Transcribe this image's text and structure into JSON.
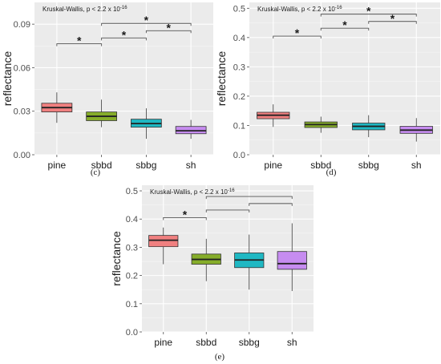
{
  "chart_data": [
    {
      "type": "box",
      "panel_label": "(c)",
      "annotation": "Kruskal-Wallis, p < 2.2 x 10",
      "annotation_exp": "-16",
      "ylabel": "reflectance",
      "ylim": [
        0,
        0.105
      ],
      "yticks": [
        0,
        0.03,
        0.06,
        0.09
      ],
      "ytick_labels": [
        "0.00",
        "0.03",
        "0.06",
        "0.09"
      ],
      "categories": [
        "pine",
        "sbbd",
        "sbbg",
        "sh"
      ],
      "colors": [
        "#f08080",
        "#86ad2a",
        "#1fb8c3",
        "#c68cf0"
      ],
      "boxes": [
        {
          "min": 0.022,
          "q1": 0.0295,
          "median": 0.0325,
          "q3": 0.0355,
          "max": 0.043
        },
        {
          "min": 0.019,
          "q1": 0.0235,
          "median": 0.0265,
          "q3": 0.0295,
          "max": 0.038
        },
        {
          "min": 0.011,
          "q1": 0.019,
          "median": 0.0215,
          "q3": 0.0245,
          "max": 0.032
        },
        {
          "min": 0.011,
          "q1": 0.0145,
          "median": 0.0165,
          "q3": 0.0195,
          "max": 0.024
        }
      ],
      "brackets": [
        {
          "from": 0,
          "to": 1,
          "y": 0.0765,
          "label": "*"
        },
        {
          "from": 1,
          "to": 2,
          "y": 0.0805,
          "label": "*"
        },
        {
          "from": 1,
          "to": 3,
          "y": 0.0905,
          "label": "*"
        },
        {
          "from": 2,
          "to": 3,
          "y": 0.0855,
          "label": "*"
        }
      ]
    },
    {
      "type": "box",
      "panel_label": "(d)",
      "annotation": "Kruskal-Wallis, p < 2.2 x 10",
      "annotation_exp": "-16",
      "ylabel": "reflectance",
      "ylim": [
        0,
        0.52
      ],
      "yticks": [
        0,
        0.1,
        0.2,
        0.3,
        0.4,
        0.5
      ],
      "ytick_labels": [
        "0.0",
        "0.1",
        "0.2",
        "0.3",
        "0.4",
        "0.5"
      ],
      "categories": [
        "pine",
        "sbbd",
        "sbbg",
        "sh"
      ],
      "colors": [
        "#f08080",
        "#86ad2a",
        "#1fb8c3",
        "#c68cf0"
      ],
      "boxes": [
        {
          "min": 0.095,
          "q1": 0.123,
          "median": 0.135,
          "q3": 0.145,
          "max": 0.172
        },
        {
          "min": 0.075,
          "q1": 0.093,
          "median": 0.103,
          "q3": 0.112,
          "max": 0.13
        },
        {
          "min": 0.06,
          "q1": 0.085,
          "median": 0.097,
          "q3": 0.108,
          "max": 0.135
        },
        {
          "min": 0.045,
          "q1": 0.073,
          "median": 0.084,
          "q3": 0.097,
          "max": 0.125
        }
      ],
      "brackets": [
        {
          "from": 0,
          "to": 1,
          "y": 0.405,
          "label": "*"
        },
        {
          "from": 1,
          "to": 2,
          "y": 0.432,
          "label": "*"
        },
        {
          "from": 1,
          "to": 3,
          "y": 0.48,
          "label": "*"
        },
        {
          "from": 2,
          "to": 3,
          "y": 0.455,
          "label": "*"
        }
      ]
    },
    {
      "type": "box",
      "panel_label": "(e)",
      "annotation": "Kruskal-Wallis, p < 2.2 x 10",
      "annotation_exp": "-16",
      "ylabel": "reflectance",
      "ylim": [
        0,
        0.52
      ],
      "yticks": [
        0,
        0.1,
        0.2,
        0.3,
        0.4,
        0.5
      ],
      "ytick_labels": [
        "0.0",
        "0.1",
        "0.2",
        "0.3",
        "0.4",
        "0.5"
      ],
      "categories": [
        "pine",
        "sbbd",
        "sbbg",
        "sh"
      ],
      "colors": [
        "#f08080",
        "#86ad2a",
        "#1fb8c3",
        "#c68cf0"
      ],
      "boxes": [
        {
          "min": 0.24,
          "q1": 0.302,
          "median": 0.325,
          "q3": 0.342,
          "max": 0.37
        },
        {
          "min": 0.18,
          "q1": 0.24,
          "median": 0.257,
          "q3": 0.276,
          "max": 0.33
        },
        {
          "min": 0.15,
          "q1": 0.228,
          "median": 0.255,
          "q3": 0.28,
          "max": 0.345
        },
        {
          "min": 0.145,
          "q1": 0.222,
          "median": 0.242,
          "q3": 0.285,
          "max": 0.385
        }
      ],
      "brackets": [
        {
          "from": 0,
          "to": 1,
          "y": 0.405,
          "label": "*"
        },
        {
          "from": 1,
          "to": 2,
          "y": 0.432,
          "label": ""
        },
        {
          "from": 1,
          "to": 3,
          "y": 0.48,
          "label": ""
        },
        {
          "from": 2,
          "to": 3,
          "y": 0.455,
          "label": ""
        }
      ]
    }
  ]
}
